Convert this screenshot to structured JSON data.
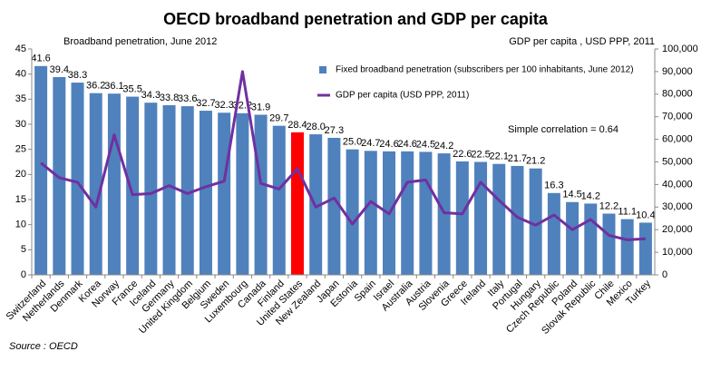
{
  "chart_data": {
    "type": "bar_line",
    "title": "OECD broadband penetration and GDP per capita",
    "y_label": "Broadband penetration, June 2012",
    "y2_label": "GDP per capita , USD PPP, 2011",
    "annotation": "Simple correlation = 0.64",
    "source": "Source : OECD",
    "categories": [
      "Switzerland",
      "Netherlands",
      "Denmark",
      "Korea",
      "Norway",
      "France",
      "Iceland",
      "Germany",
      "United Kingdom",
      "Belgium",
      "Sweden",
      "Luxembourg",
      "Canada",
      "Finland",
      "United States",
      "New Zealand",
      "Japan",
      "Estonia",
      "Spain",
      "Israel",
      "Australia",
      "Austria",
      "Slovenia",
      "Greece",
      "Ireland",
      "Italy",
      "Portugal",
      "Hungary",
      "Czech Republic",
      "Poland",
      "Slovak Republic",
      "Chile",
      "Mexico",
      "Turkey"
    ],
    "series": [
      {
        "name": "Fixed broadband penetration (subscribers per 100 inhabitants, June 2012)",
        "type": "bar",
        "color": "#4f81bd",
        "colors": [
          "#4f81bd",
          "#4f81bd",
          "#4f81bd",
          "#4f81bd",
          "#4f81bd",
          "#4f81bd",
          "#4f81bd",
          "#4f81bd",
          "#4f81bd",
          "#4f81bd",
          "#4f81bd",
          "#4f81bd",
          "#4f81bd",
          "#4f81bd",
          "#ff0000",
          "#4f81bd",
          "#4f81bd",
          "#4f81bd",
          "#4f81bd",
          "#4f81bd",
          "#4f81bd",
          "#4f81bd",
          "#4f81bd",
          "#4f81bd",
          "#4f81bd",
          "#4f81bd",
          "#4f81bd",
          "#4f81bd",
          "#4f81bd",
          "#4f81bd",
          "#4f81bd",
          "#4f81bd",
          "#4f81bd",
          "#4f81bd"
        ],
        "values": [
          41.6,
          39.4,
          38.3,
          36.2,
          36.1,
          35.5,
          34.3,
          33.8,
          33.6,
          32.7,
          32.3,
          32.2,
          31.9,
          29.7,
          28.4,
          28.0,
          27.3,
          25.0,
          24.7,
          24.6,
          24.6,
          24.5,
          24.2,
          22.6,
          22.5,
          22.1,
          21.7,
          21.2,
          16.3,
          14.5,
          14.2,
          12.2,
          11.1,
          10.4
        ],
        "value_labels": [
          "41.6",
          "39.4",
          "38.3",
          "36.2",
          "36.1",
          "35.5",
          "34.3",
          "33.8",
          "33.6",
          "32.7",
          "32.3",
          "32.2",
          "31.9",
          "29.7",
          "28.4",
          "28.0",
          "27.3",
          "25.0",
          "24.7",
          "24.6",
          "24.6",
          "24.5",
          "24.2",
          "22.6",
          "22.5",
          "22.1",
          "21.7",
          "21.2",
          "16.3",
          "14.5",
          "14.2",
          "12.2",
          "11.1",
          "10.4"
        ]
      },
      {
        "name": "GDP per capita (USD PPP, 2011)",
        "type": "line",
        "axis": "y2",
        "color": "#7030a0",
        "values": [
          49500,
          43000,
          41000,
          30000,
          62000,
          35500,
          36000,
          39500,
          36000,
          39000,
          41500,
          90000,
          40500,
          38000,
          47000,
          30000,
          34000,
          22500,
          32500,
          27000,
          41000,
          42000,
          27500,
          27000,
          41000,
          33000,
          25500,
          22000,
          26500,
          20000,
          24500,
          17500,
          15500,
          16000
        ]
      }
    ],
    "ylim": [
      0,
      45
    ],
    "yticks": [
      0,
      5,
      10,
      15,
      20,
      25,
      30,
      35,
      40,
      45
    ],
    "y2lim": [
      0,
      100000
    ],
    "y2ticks": [
      0,
      {
        "value": 10000,
        "label": "10,000"
      },
      {
        "value": 20000,
        "label": "20,000"
      },
      {
        "value": 30000,
        "label": "30,000"
      },
      {
        "value": 40000,
        "label": "40,000"
      },
      {
        "value": 50000,
        "label": "50,000"
      },
      {
        "value": 60000,
        "label": "60,000"
      },
      {
        "value": 70000,
        "label": "70,000"
      },
      {
        "value": 80000,
        "label": "80,000"
      },
      {
        "value": 90000,
        "label": "90,000"
      },
      {
        "value": 100000,
        "label": "100,000"
      }
    ],
    "grid": false
  }
}
